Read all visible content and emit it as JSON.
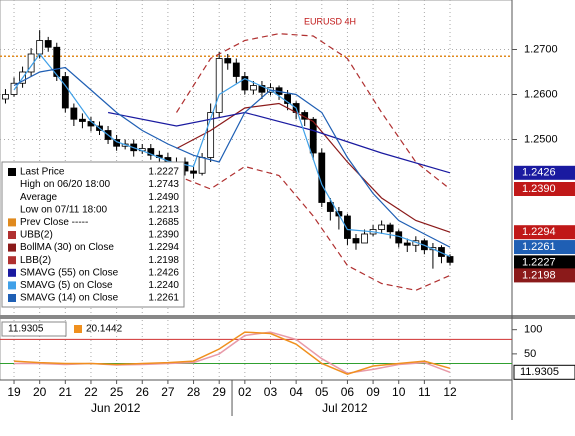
{
  "chart_data": [
    {
      "type": "candlestick",
      "title": "EURUSD 4H",
      "xlim": [
        -0.64,
        59.25
      ],
      "ylim": [
        1.211,
        1.281
      ],
      "yticks": [
        {
          "value": 1.25,
          "label": "1.2500"
        },
        {
          "value": 1.26,
          "label": "1.2600"
        },
        {
          "value": 1.27,
          "label": "1.2700"
        }
      ],
      "grid": true,
      "open": [
        1.259,
        1.26,
        1.2625,
        1.265,
        1.269,
        1.272,
        1.2705,
        1.264,
        1.257,
        1.2545,
        1.254,
        1.253,
        1.252,
        1.25,
        1.2485,
        1.249,
        1.2475,
        1.248,
        1.2465,
        1.246,
        1.2445,
        1.245,
        1.243,
        1.2425,
        1.246,
        1.256,
        1.268,
        1.267,
        1.264,
        1.261,
        1.262,
        1.2605,
        1.2615,
        1.26,
        1.258,
        1.256,
        1.2545,
        1.247,
        1.236,
        1.234,
        1.233,
        1.228,
        1.227,
        1.229,
        1.23,
        1.231,
        1.2295,
        1.227,
        1.2265,
        1.2275,
        1.2255,
        1.226,
        1.224
      ],
      "high": [
        1.2612,
        1.2638,
        1.2662,
        1.2703,
        1.2743,
        1.2728,
        1.2715,
        1.265,
        1.258,
        1.2558,
        1.255,
        1.254,
        1.253,
        1.251,
        1.25,
        1.25,
        1.249,
        1.249,
        1.2475,
        1.247,
        1.246,
        1.246,
        1.244,
        1.247,
        1.258,
        1.2695,
        1.269,
        1.268,
        1.265,
        1.263,
        1.263,
        1.2625,
        1.262,
        1.261,
        1.2585,
        1.2565,
        1.255,
        1.248,
        1.237,
        1.235,
        1.2335,
        1.229,
        1.23,
        1.231,
        1.232,
        1.2315,
        1.23,
        1.228,
        1.2285,
        1.228,
        1.227,
        1.2265,
        1.2245
      ],
      "low": [
        1.258,
        1.2595,
        1.2615,
        1.264,
        1.268,
        1.2695,
        1.263,
        1.256,
        1.253,
        1.2525,
        1.2518,
        1.251,
        1.249,
        1.2475,
        1.2478,
        1.2462,
        1.2468,
        1.2455,
        1.2448,
        1.2435,
        1.2438,
        1.242,
        1.2413,
        1.242,
        1.245,
        1.255,
        1.2655,
        1.2625,
        1.26,
        1.26,
        1.259,
        1.2598,
        1.2588,
        1.2565,
        1.2545,
        1.253,
        1.2455,
        1.235,
        1.232,
        1.23,
        1.2265,
        1.2255,
        1.227,
        1.2285,
        1.229,
        1.228,
        1.226,
        1.225,
        1.225,
        1.2245,
        1.2213,
        1.2225,
        1.222
      ],
      "close": [
        1.26,
        1.2625,
        1.265,
        1.269,
        1.272,
        1.2705,
        1.264,
        1.257,
        1.2545,
        1.254,
        1.253,
        1.252,
        1.25,
        1.2485,
        1.249,
        1.2475,
        1.248,
        1.2465,
        1.246,
        1.2445,
        1.245,
        1.243,
        1.2425,
        1.246,
        1.256,
        1.268,
        1.267,
        1.264,
        1.261,
        1.262,
        1.2605,
        1.2615,
        1.26,
        1.258,
        1.256,
        1.2545,
        1.247,
        1.236,
        1.234,
        1.233,
        1.228,
        1.227,
        1.229,
        1.23,
        1.231,
        1.2295,
        1.227,
        1.2265,
        1.2275,
        1.2255,
        1.226,
        1.224,
        1.2227
      ],
      "series": [
        {
          "name": "UBB(2)",
          "color": "#b03030",
          "dash": true,
          "x": [
            20,
            24,
            28,
            32,
            36,
            40,
            44,
            48,
            52
          ],
          "values": [
            1.256,
            1.268,
            1.272,
            1.2735,
            1.273,
            1.268,
            1.256,
            1.245,
            1.239
          ]
        },
        {
          "name": "BollMA (30) on Close",
          "color": "#8b1a1a",
          "dash": false,
          "x": [
            20,
            24,
            28,
            32,
            36,
            40,
            44,
            48,
            52
          ],
          "values": [
            1.248,
            1.252,
            1.257,
            1.258,
            1.254,
            1.245,
            1.237,
            1.232,
            1.2294
          ]
        },
        {
          "name": "LBB(2)",
          "color": "#b03030",
          "dash": true,
          "x": [
            20,
            24,
            28,
            32,
            36,
            40,
            44,
            48,
            52
          ],
          "values": [
            1.242,
            1.239,
            1.244,
            1.242,
            1.233,
            1.222,
            1.218,
            1.2165,
            1.2198
          ]
        },
        {
          "name": "SMAVG (55) on Close",
          "color": "#1a1aa0",
          "dash": false,
          "x": [
            12,
            20,
            28,
            36,
            44,
            52
          ],
          "values": [
            1.256,
            1.253,
            1.256,
            1.252,
            1.247,
            1.2426
          ]
        },
        {
          "name": "SMAVG (5) on Close",
          "color": "#3fa0e8",
          "dash": false,
          "x": [
            1,
            4,
            7,
            10,
            13,
            16,
            19,
            22,
            25,
            28,
            31,
            34,
            37,
            40,
            43,
            46,
            49,
            52
          ],
          "values": [
            1.261,
            1.269,
            1.262,
            1.254,
            1.2495,
            1.2475,
            1.2452,
            1.244,
            1.26,
            1.2635,
            1.261,
            1.257,
            1.24,
            1.23,
            1.2295,
            1.2285,
            1.2265,
            1.224
          ]
        },
        {
          "name": "SMAVG (14) on Close",
          "color": "#1f5fb4",
          "dash": false,
          "x": [
            1,
            4,
            7,
            10,
            13,
            16,
            19,
            22,
            25,
            28,
            31,
            34,
            37,
            40,
            43,
            46,
            49,
            52
          ],
          "values": [
            1.262,
            1.265,
            1.266,
            1.261,
            1.256,
            1.252,
            1.249,
            1.2465,
            1.245,
            1.256,
            1.261,
            1.26,
            1.256,
            1.246,
            1.238,
            1.232,
            1.229,
            1.2261
          ]
        }
      ],
      "prev_close": {
        "value": 1.2685,
        "color": "#e08a1e"
      },
      "legend": [
        {
          "label": "Last Price",
          "value": "1.2227",
          "color": "#000000"
        },
        {
          "label": "High on 06/20 18:00",
          "value": "1.2743"
        },
        {
          "label": "Average",
          "value": "1.2490"
        },
        {
          "label": "Low on 07/11 18:00",
          "value": "1.2213"
        },
        {
          "label": "Prev Close -----",
          "value": "1.2685",
          "color": "#e08a1e"
        },
        {
          "label": "UBB(2)",
          "value": "1.2390",
          "color": "#b03030"
        },
        {
          "label": "BollMA (30) on Close",
          "value": "1.2294",
          "color": "#8b1a1a"
        },
        {
          "label": "LBB(2)",
          "value": "1.2198",
          "color": "#b03030"
        },
        {
          "label": "SMAVG (55) on Close",
          "value": "1.2426",
          "color": "#1a1aa0"
        },
        {
          "label": "SMAVG (5) on Close",
          "value": "1.2240",
          "color": "#3fa0e8"
        },
        {
          "label": "SMAVG (14) on Close",
          "value": "1.2261",
          "color": "#1f5fb4"
        }
      ],
      "price_tags": [
        {
          "value": 1.2426,
          "label": "1.2426",
          "color": "#1a1aa0"
        },
        {
          "value": 1.239,
          "label": "1.2390",
          "color": "#c01818"
        },
        {
          "value": 1.2294,
          "label": "1.2294",
          "color": "#c01818"
        },
        {
          "value": 1.2261,
          "label": "1.2261",
          "color": "#1f5fb4"
        },
        {
          "value": 1.2227,
          "label": "1.2227",
          "color": "#000000"
        },
        {
          "value": 1.2198,
          "label": "1.2198",
          "color": "#8b1a1a"
        }
      ]
    },
    {
      "type": "line",
      "xlim": [
        -0.64,
        59.25
      ],
      "ylim": [
        -4,
        120
      ],
      "yticks": [
        50,
        100
      ],
      "levels": [
        {
          "value": 80,
          "color": "#d03030"
        },
        {
          "value": 30,
          "color": "#30a030"
        }
      ],
      "series": [
        {
          "color": "#e89aa8",
          "x": [
            1,
            4,
            7,
            10,
            13,
            16,
            19,
            22,
            25,
            28,
            31,
            34,
            37,
            40,
            43,
            46,
            49,
            52
          ],
          "values": [
            30,
            30,
            28,
            30,
            27,
            28,
            30,
            32,
            50,
            88,
            95,
            80,
            40,
            10,
            18,
            28,
            32,
            11.9305
          ]
        },
        {
          "color": "#f0901e",
          "x": [
            1,
            4,
            7,
            10,
            13,
            16,
            19,
            22,
            25,
            28,
            31,
            34,
            37,
            40,
            43,
            46,
            49,
            52
          ],
          "values": [
            35,
            32,
            30,
            30,
            28,
            30,
            32,
            35,
            60,
            95,
            92,
            70,
            30,
            8,
            25,
            30,
            35,
            20.1442
          ]
        }
      ],
      "xticks": [
        {
          "value": 1,
          "label": "19"
        },
        {
          "value": 4,
          "label": "20"
        },
        {
          "value": 7,
          "label": "21"
        },
        {
          "value": 10,
          "label": "22"
        },
        {
          "value": 13,
          "label": "25"
        },
        {
          "value": 16,
          "label": "26"
        },
        {
          "value": 19,
          "label": "27"
        },
        {
          "value": 22,
          "label": "28"
        },
        {
          "value": 25,
          "label": "29"
        },
        {
          "value": 28,
          "label": "02"
        },
        {
          "value": 31,
          "label": "03"
        },
        {
          "value": 34,
          "label": "04"
        },
        {
          "value": 37,
          "label": "05"
        },
        {
          "value": 40,
          "label": "06"
        },
        {
          "value": 43,
          "label": "09"
        },
        {
          "value": 46,
          "label": "10"
        },
        {
          "value": 49,
          "label": "11"
        },
        {
          "value": 52,
          "label": "12"
        }
      ],
      "month_labels": [
        {
          "value": 12.9,
          "label": "Jun 2012"
        },
        {
          "value": 39.7,
          "label": "Jul 2012"
        }
      ]
    }
  ]
}
